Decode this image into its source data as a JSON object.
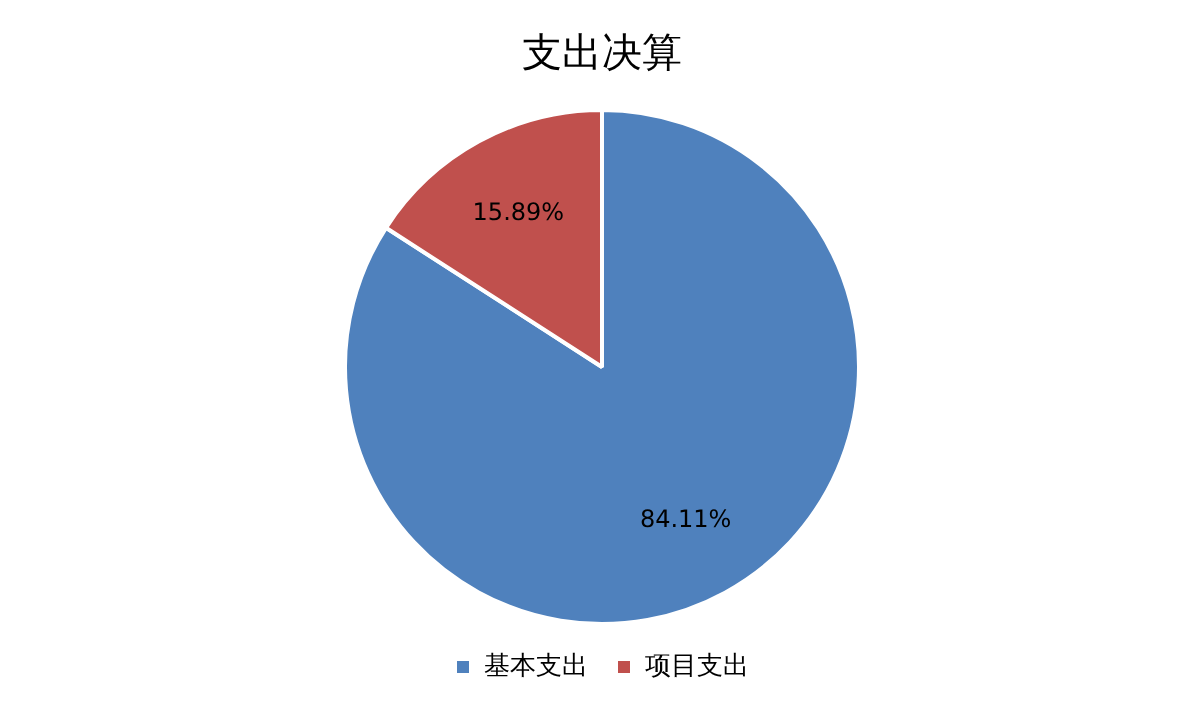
{
  "chart_data": {
    "type": "pie",
    "title": "支出决算",
    "categories": [
      "基本支出",
      "项目支出"
    ],
    "values": [
      84.11,
      15.89
    ],
    "colors": [
      "#4f81bd",
      "#c0504d"
    ],
    "value_labels": [
      "84.11%",
      "15.89%"
    ],
    "legend": "bottom"
  }
}
